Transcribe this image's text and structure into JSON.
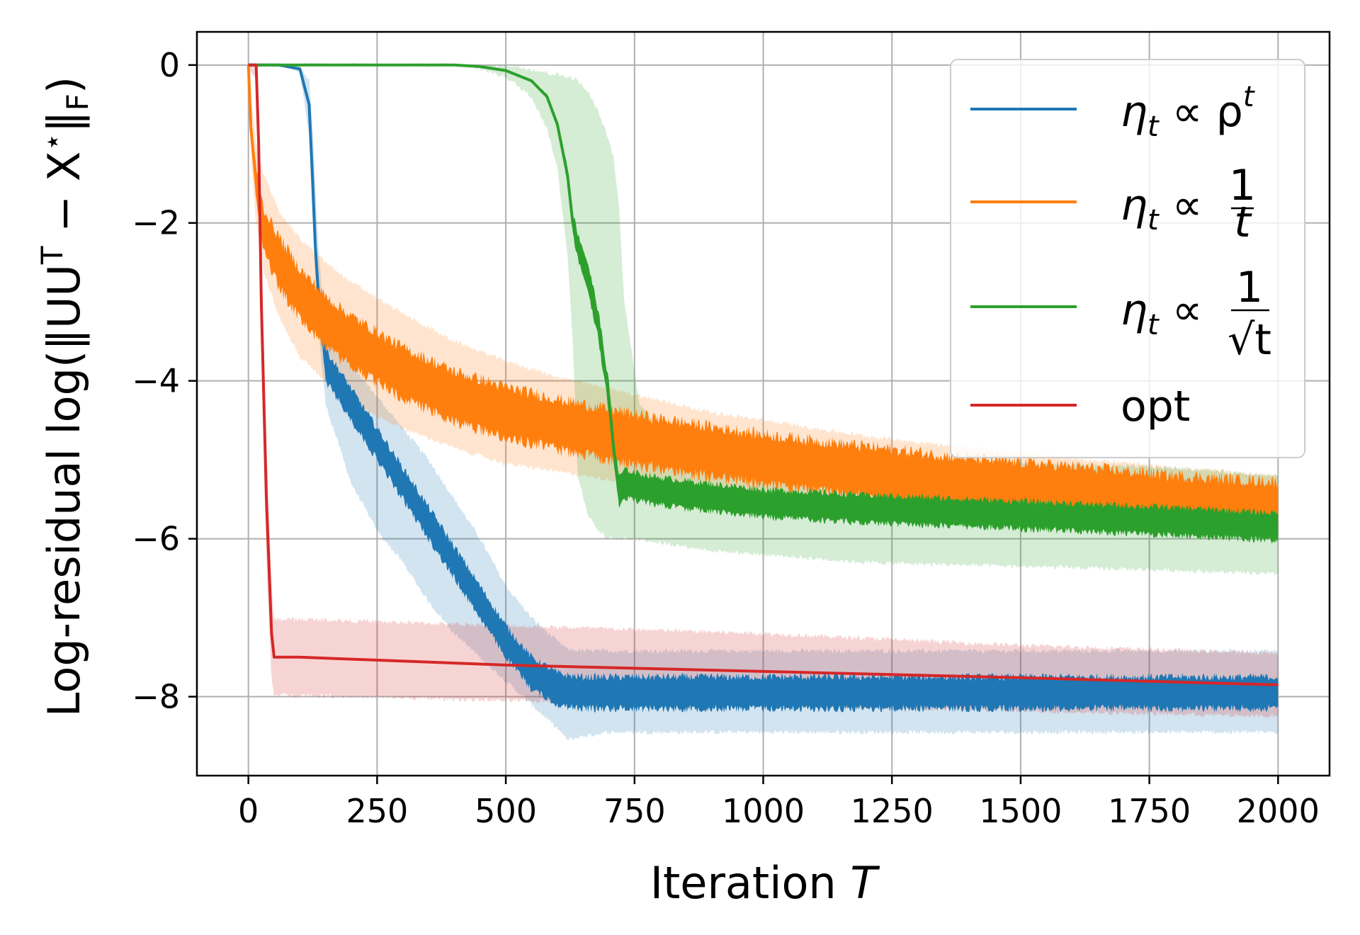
{
  "chart_data": {
    "type": "line",
    "xlabel": "Iteration",
    "xlabel_var": "T",
    "ylabel": "Log-residual log(‖UU",
    "ylabel_sup": "T",
    "ylabel_mid": " − X",
    "ylabel_star": "⋆",
    "ylabel_end": "‖",
    "ylabel_sub": "F",
    "ylabel_close": ")",
    "xlim": [
      -100,
      2100
    ],
    "ylim": [
      -9,
      0.42
    ],
    "xticks": [
      0,
      250,
      500,
      750,
      1000,
      1250,
      1500,
      1750,
      2000
    ],
    "xtick_labels": [
      "0",
      "250",
      "500",
      "750",
      "1000",
      "1250",
      "1500",
      "1750",
      "2000"
    ],
    "yticks": [
      0,
      -2,
      -4,
      -6,
      -8
    ],
    "ytick_labels": [
      "0",
      "−2",
      "−4",
      "−6",
      "−8"
    ],
    "grid": true,
    "legend_position": "top-right",
    "series": [
      {
        "name": "ηt ∝ ρ^t",
        "legend_main": "η",
        "legend_sub": "t",
        "legend_rel": " ∝ ρ",
        "legend_sup": "t",
        "color": "#1f77b4",
        "band_width": 0.25,
        "x": [
          0,
          60,
          100,
          118,
          125,
          130,
          135,
          150,
          200,
          250,
          300,
          350,
          400,
          450,
          500,
          550,
          600,
          620,
          650,
          700,
          800,
          1000,
          1500,
          2000
        ],
        "y": [
          0,
          0,
          -0.05,
          -0.5,
          -1.5,
          -2.3,
          -2.8,
          -3.8,
          -4.3,
          -4.8,
          -5.3,
          -5.8,
          -6.3,
          -6.8,
          -7.3,
          -7.7,
          -7.9,
          -7.93,
          -7.95,
          -7.95,
          -7.95,
          -7.95,
          -7.95,
          -7.95
        ],
        "lower": [
          0,
          0,
          -0.1,
          -0.9,
          -2.0,
          -2.8,
          -3.3,
          -4.3,
          -5.3,
          -5.9,
          -6.3,
          -6.8,
          -7.2,
          -7.5,
          -7.8,
          -8.1,
          -8.4,
          -8.55,
          -8.5,
          -8.45,
          -8.45,
          -8.45,
          -8.45,
          -8.45
        ],
        "upper": [
          0,
          0,
          0,
          -0.2,
          -0.8,
          -1.5,
          -2.2,
          -3.4,
          -3.8,
          -4.2,
          -4.6,
          -5.0,
          -5.5,
          -6.0,
          -6.6,
          -7.0,
          -7.3,
          -7.4,
          -7.42,
          -7.42,
          -7.42,
          -7.42,
          -7.42,
          -7.42
        ]
      },
      {
        "name": "ηt ∝ 1/t",
        "legend_main": "η",
        "legend_sub": "t",
        "legend_rel": " ∝ ",
        "frac_num": "1",
        "frac_den": "t",
        "color": "#ff7f0e",
        "band_width": 0.4,
        "x": [
          0,
          5,
          15,
          30,
          60,
          100,
          150,
          200,
          300,
          400,
          500,
          600,
          700,
          800,
          900,
          1000,
          1200,
          1400,
          1600,
          1800,
          2000
        ],
        "y": [
          0,
          -0.8,
          -1.5,
          -2.1,
          -2.5,
          -2.9,
          -3.25,
          -3.5,
          -3.9,
          -4.2,
          -4.4,
          -4.55,
          -4.68,
          -4.8,
          -4.9,
          -5.0,
          -5.15,
          -5.3,
          -5.4,
          -5.52,
          -5.6
        ],
        "lower": [
          0,
          -1.2,
          -2.0,
          -2.6,
          -3.2,
          -3.7,
          -4.0,
          -4.3,
          -4.6,
          -4.85,
          -5.05,
          -5.15,
          -5.25,
          -5.35,
          -5.45,
          -5.55,
          -5.65,
          -5.75,
          -5.82,
          -5.9,
          -5.95
        ],
        "upper": [
          0,
          -0.4,
          -1.0,
          -1.4,
          -1.85,
          -2.2,
          -2.5,
          -2.75,
          -3.15,
          -3.5,
          -3.75,
          -3.95,
          -4.1,
          -4.25,
          -4.4,
          -4.5,
          -4.7,
          -4.85,
          -4.98,
          -5.1,
          -5.2
        ]
      },
      {
        "name": "ηt ∝ 1/√t",
        "legend_main": "η",
        "legend_sub": "t",
        "legend_rel": " ∝ ",
        "frac_num": "1",
        "frac_den": "√t",
        "color": "#2ca02c",
        "band_width": 0.22,
        "x": [
          0,
          400,
          450,
          500,
          550,
          580,
          600,
          620,
          630,
          640,
          660,
          680,
          700,
          710,
          720,
          730,
          760,
          800,
          900,
          1000,
          1200,
          1500,
          1800,
          2000
        ],
        "y": [
          0,
          0,
          -0.02,
          -0.07,
          -0.2,
          -0.4,
          -0.75,
          -1.4,
          -2.0,
          -2.3,
          -2.7,
          -3.3,
          -4.2,
          -4.9,
          -5.4,
          -5.3,
          -5.35,
          -5.4,
          -5.48,
          -5.55,
          -5.62,
          -5.7,
          -5.78,
          -5.85
        ],
        "lower": [
          0,
          0,
          -0.05,
          -0.15,
          -0.4,
          -0.8,
          -1.3,
          -2.4,
          -3.5,
          -5.2,
          -5.7,
          -5.9,
          -6.0,
          -6.0,
          -6.0,
          -6.0,
          -6.0,
          -6.05,
          -6.15,
          -6.2,
          -6.3,
          -6.35,
          -6.4,
          -6.45
        ],
        "upper": [
          0,
          0,
          0,
          0,
          -0.05,
          -0.1,
          -0.12,
          -0.15,
          -0.17,
          -0.2,
          -0.35,
          -0.6,
          -0.95,
          -1.2,
          -1.8,
          -3.0,
          -4.3,
          -4.6,
          -4.8,
          -4.9,
          -5.0,
          -5.05,
          -5.1,
          -5.2
        ]
      },
      {
        "name": "opt",
        "legend_main": "opt",
        "color": "#d62728",
        "band_width": 0,
        "x": [
          0,
          15,
          20,
          25,
          35,
          45,
          50,
          60,
          100,
          500,
          1000,
          1500,
          2000
        ],
        "y": [
          0,
          0,
          -1.0,
          -3.0,
          -5.5,
          -7.2,
          -7.5,
          -7.5,
          -7.5,
          -7.6,
          -7.68,
          -7.76,
          -7.85
        ],
        "lower": [
          0,
          -0.2,
          -1.4,
          -3.6,
          -6.3,
          -7.8,
          -7.98,
          -7.98,
          -7.98,
          -8.05,
          -8.1,
          -8.18,
          -8.25
        ],
        "upper": [
          0,
          0,
          -0.6,
          -2.4,
          -4.8,
          -6.6,
          -7.02,
          -7.02,
          -7.02,
          -7.1,
          -7.2,
          -7.35,
          -7.45
        ]
      }
    ]
  }
}
